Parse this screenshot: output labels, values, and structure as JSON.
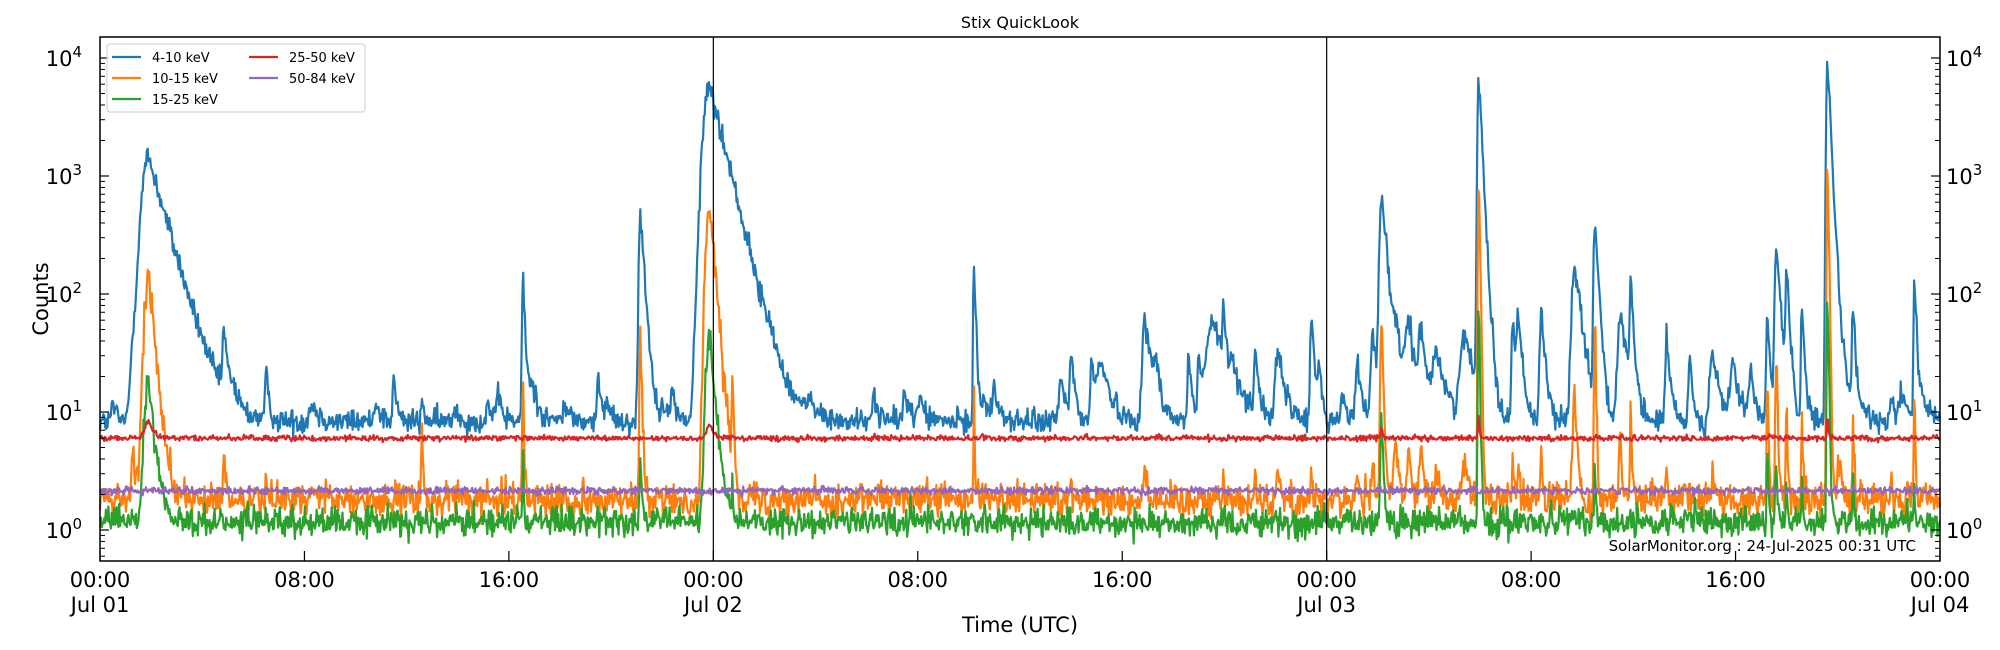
{
  "chart_data": {
    "type": "line",
    "title": "Stix QuickLook",
    "xlabel": "Time (UTC)",
    "ylabel": "Counts",
    "yscale": "log",
    "ylim": [
      0.55,
      15000
    ],
    "xlim_hours": [
      0,
      72
    ],
    "grid": false,
    "legend_position": "upper left",
    "legend_columns": 2,
    "x_ticks": [
      {
        "hour": 0,
        "line1": "00:00",
        "line2": "Jul 01"
      },
      {
        "hour": 8,
        "line1": "08:00",
        "line2": ""
      },
      {
        "hour": 16,
        "line1": "16:00",
        "line2": ""
      },
      {
        "hour": 24,
        "line1": "00:00",
        "line2": "Jul 02"
      },
      {
        "hour": 32,
        "line1": "08:00",
        "line2": ""
      },
      {
        "hour": 40,
        "line1": "16:00",
        "line2": ""
      },
      {
        "hour": 48,
        "line1": "00:00",
        "line2": "Jul 03"
      },
      {
        "hour": 56,
        "line1": "08:00",
        "line2": ""
      },
      {
        "hour": 64,
        "line1": "16:00",
        "line2": ""
      },
      {
        "hour": 72,
        "line1": "00:00",
        "line2": "Jul 04"
      }
    ],
    "y_ticks": [
      {
        "value": 1,
        "label_base": "10",
        "label_exp": "0"
      },
      {
        "value": 10,
        "label_base": "10",
        "label_exp": "1"
      },
      {
        "value": 100,
        "label_base": "10",
        "label_exp": "2"
      },
      {
        "value": 1000,
        "label_base": "10",
        "label_exp": "3"
      },
      {
        "value": 10000,
        "label_base": "10",
        "label_exp": "4"
      }
    ],
    "day_boundaries_hours": [
      24,
      48
    ],
    "annotation": "SolarMonitor.org : 24-Jul-2025 00:31 UTC",
    "series": [
      {
        "name": "4-10 keV",
        "color": "#1f77b4",
        "baseline": 8.3,
        "noise": 0.05
      },
      {
        "name": "10-15 keV",
        "color": "#ff7f0e",
        "baseline": 1.8,
        "noise": 0.07
      },
      {
        "name": "15-25 keV",
        "color": "#2ca02c",
        "baseline": 1.17,
        "noise": 0.06
      },
      {
        "name": "25-50 keV",
        "color": "#d62728",
        "baseline": 6.0,
        "noise": 0.012
      },
      {
        "name": "50-84 keV",
        "color": "#9467bd",
        "baseline": 2.15,
        "noise": 0.015
      }
    ],
    "flare_events": [
      {
        "hour": 0.5,
        "peak_4_10": 12,
        "peak_10_15": 0,
        "peak_15_25": 0,
        "width": 0.08
      },
      {
        "hour": 1.3,
        "peak_4_10": 30,
        "peak_10_15": 4.5,
        "peak_15_25": 0,
        "width": 0.15
      },
      {
        "hour": 1.9,
        "peak_4_10": 1450,
        "peak_10_15": 145,
        "peak_15_25": 18,
        "peak_25_50": 8.5,
        "width": 0.35
      },
      {
        "hour": 2.5,
        "peak_4_10": 13,
        "peak_10_15": 0,
        "peak_15_25": 0,
        "width": 0.1
      },
      {
        "hour": 3.1,
        "peak_4_10": 12,
        "peak_10_15": 0,
        "peak_15_25": 0,
        "width": 0.1
      },
      {
        "hour": 4.85,
        "peak_4_10": 44,
        "peak_10_15": 4.5,
        "peak_15_25": 0,
        "width": 0.08
      },
      {
        "hour": 5.2,
        "peak_4_10": 13,
        "peak_10_15": 0,
        "peak_15_25": 0,
        "width": 0.1
      },
      {
        "hour": 6.5,
        "peak_4_10": 21,
        "peak_10_15": 3.2,
        "peak_15_25": 0,
        "width": 0.06
      },
      {
        "hour": 8.3,
        "peak_4_10": 12,
        "peak_10_15": 0,
        "peak_15_25": 0,
        "width": 0.15
      },
      {
        "hour": 10.8,
        "peak_4_10": 13,
        "peak_10_15": 0,
        "peak_15_25": 0,
        "width": 0.1
      },
      {
        "hour": 11.5,
        "peak_4_10": 20,
        "peak_10_15": 0,
        "peak_15_25": 0,
        "width": 0.06
      },
      {
        "hour": 12.6,
        "peak_4_10": 12,
        "peak_10_15": 9,
        "peak_15_25": 0,
        "width": 0.06
      },
      {
        "hour": 13.9,
        "peak_4_10": 11,
        "peak_10_15": 0,
        "peak_15_25": 0,
        "width": 0.1
      },
      {
        "hour": 15.2,
        "peak_4_10": 12,
        "peak_10_15": 0,
        "peak_15_25": 0,
        "width": 0.1
      },
      {
        "hour": 15.6,
        "peak_4_10": 13,
        "peak_10_15": 0,
        "peak_15_25": 0,
        "width": 0.1
      },
      {
        "hour": 16.55,
        "peak_4_10": 135,
        "peak_10_15": 24,
        "peak_15_25": 4.5,
        "width": 0.05
      },
      {
        "hour": 16.9,
        "peak_4_10": 17,
        "peak_10_15": 0,
        "peak_15_25": 0,
        "width": 0.15
      },
      {
        "hour": 18.2,
        "peak_4_10": 12,
        "peak_10_15": 0,
        "peak_15_25": 0,
        "width": 0.1
      },
      {
        "hour": 19.5,
        "peak_4_10": 18,
        "peak_10_15": 0,
        "peak_15_25": 0,
        "width": 0.08
      },
      {
        "hour": 19.9,
        "peak_4_10": 12,
        "peak_10_15": 0,
        "peak_15_25": 0,
        "width": 0.1
      },
      {
        "hour": 21.15,
        "peak_4_10": 500,
        "peak_10_15": 55,
        "peak_15_25": 4.5,
        "width": 0.08
      },
      {
        "hour": 22.0,
        "peak_4_10": 13,
        "peak_10_15": 0,
        "peak_15_25": 0,
        "width": 0.1
      },
      {
        "hour": 22.4,
        "peak_4_10": 14,
        "peak_10_15": 0,
        "peak_15_25": 0,
        "width": 0.1
      },
      {
        "hour": 23.3,
        "peak_4_10": 22,
        "peak_10_15": 0,
        "peak_15_25": 0,
        "width": 0.1
      },
      {
        "hour": 23.55,
        "peak_4_10": 280,
        "peak_10_15": 6,
        "peak_15_25": 0,
        "width": 0.06
      },
      {
        "hour": 23.85,
        "peak_4_10": 5900,
        "peak_10_15": 600,
        "peak_15_25": 48,
        "peak_25_50": 8,
        "width": 0.3
      },
      {
        "hour": 24.5,
        "peak_4_10": 42,
        "peak_10_15": 3.5,
        "peak_15_25": 0,
        "width": 0.1
      },
      {
        "hour": 24.75,
        "peak_4_10": 190,
        "peak_10_15": 24,
        "peak_15_25": 3.0,
        "width": 0.06
      },
      {
        "hour": 25.4,
        "peak_4_10": 14,
        "peak_10_15": 0,
        "peak_15_25": 0,
        "width": 0.1
      },
      {
        "hour": 26.2,
        "peak_4_10": 15,
        "peak_10_15": 0,
        "peak_15_25": 0,
        "width": 0.1
      },
      {
        "hour": 27.8,
        "peak_4_10": 13,
        "peak_10_15": 0,
        "peak_15_25": 0,
        "width": 0.1
      },
      {
        "hour": 30.3,
        "peak_4_10": 14,
        "peak_10_15": 0,
        "peak_15_25": 0,
        "width": 0.1
      },
      {
        "hour": 31.5,
        "peak_4_10": 16,
        "peak_10_15": 0,
        "peak_15_25": 0,
        "width": 0.1
      },
      {
        "hour": 32.1,
        "peak_4_10": 14,
        "peak_10_15": 0,
        "peak_15_25": 0,
        "width": 0.1
      },
      {
        "hour": 34.2,
        "peak_4_10": 200,
        "peak_10_15": 16,
        "peak_15_25": 0,
        "width": 0.04
      },
      {
        "hour": 34.6,
        "peak_4_10": 13,
        "peak_10_15": 0,
        "peak_15_25": 0,
        "width": 0.1
      },
      {
        "hour": 35.0,
        "peak_4_10": 15,
        "peak_10_15": 0,
        "peak_15_25": 0,
        "width": 0.12
      },
      {
        "hour": 37.6,
        "peak_4_10": 20,
        "peak_10_15": 0,
        "peak_15_25": 0,
        "width": 0.1
      },
      {
        "hour": 38.0,
        "peak_4_10": 30,
        "peak_10_15": 3.2,
        "peak_15_25": 0,
        "width": 0.08
      },
      {
        "hour": 38.8,
        "peak_4_10": 30,
        "peak_10_15": 0,
        "peak_15_25": 0,
        "width": 0.06
      },
      {
        "hour": 39.15,
        "peak_4_10": 28,
        "peak_10_15": 0,
        "peak_15_25": 0,
        "width": 0.2
      },
      {
        "hour": 40.9,
        "peak_4_10": 57,
        "peak_10_15": 3.2,
        "peak_15_25": 0,
        "width": 0.15
      },
      {
        "hour": 41.3,
        "peak_4_10": 22,
        "peak_10_15": 0,
        "peak_15_25": 0,
        "width": 0.1
      },
      {
        "hour": 42.6,
        "peak_4_10": 33,
        "peak_10_15": 0,
        "peak_15_25": 0,
        "width": 0.06
      },
      {
        "hour": 43.0,
        "peak_4_10": 30,
        "peak_10_15": 0,
        "peak_15_25": 0,
        "width": 0.06
      },
      {
        "hour": 43.55,
        "peak_4_10": 57,
        "peak_10_15": 0,
        "peak_15_25": 0,
        "width": 0.35
      },
      {
        "hour": 43.95,
        "peak_4_10": 73,
        "peak_10_15": 4.5,
        "peak_15_25": 0,
        "width": 0.04
      },
      {
        "hour": 44.3,
        "peak_4_10": 16,
        "peak_10_15": 0,
        "peak_15_25": 0,
        "width": 0.1
      },
      {
        "hour": 45.2,
        "peak_4_10": 36,
        "peak_10_15": 3.5,
        "peak_15_25": 0,
        "width": 0.06
      },
      {
        "hour": 46.1,
        "peak_4_10": 30,
        "peak_10_15": 3.5,
        "peak_15_25": 0,
        "width": 0.15
      },
      {
        "hour": 47.4,
        "peak_4_10": 69,
        "peak_10_15": 3.5,
        "peak_15_25": 0,
        "width": 0.06
      },
      {
        "hour": 47.7,
        "peak_4_10": 28,
        "peak_10_15": 0,
        "peak_15_25": 0,
        "width": 0.06
      },
      {
        "hour": 48.6,
        "peak_4_10": 14,
        "peak_10_15": 0,
        "peak_15_25": 0,
        "width": 0.1
      },
      {
        "hour": 49.2,
        "peak_4_10": 26,
        "peak_10_15": 3.0,
        "peak_15_25": 0,
        "width": 0.1
      },
      {
        "hour": 49.8,
        "peak_4_10": 50,
        "peak_10_15": 4.5,
        "peak_15_25": 0,
        "width": 0.1
      },
      {
        "hour": 50.15,
        "peak_4_10": 760,
        "peak_10_15": 65,
        "peak_15_25": 10,
        "peak_25_50": 7.5,
        "width": 0.1
      },
      {
        "hour": 50.7,
        "peak_4_10": 38,
        "peak_10_15": 5,
        "peak_15_25": 0,
        "width": 0.2
      },
      {
        "hour": 51.2,
        "peak_4_10": 55,
        "peak_10_15": 5.5,
        "peak_15_25": 0,
        "width": 0.15
      },
      {
        "hour": 51.7,
        "peak_4_10": 40,
        "peak_10_15": 5,
        "peak_15_25": 0,
        "width": 0.15
      },
      {
        "hour": 52.3,
        "peak_4_10": 30,
        "peak_10_15": 3.5,
        "peak_15_25": 0,
        "width": 0.2
      },
      {
        "hour": 53.4,
        "peak_4_10": 42,
        "peak_10_15": 4.5,
        "peak_15_25": 0,
        "width": 0.25
      },
      {
        "hour": 53.95,
        "peak_4_10": 8200,
        "peak_10_15": 1350,
        "peak_15_25": 110,
        "peak_25_50": 10,
        "width": 0.06
      },
      {
        "hour": 54.5,
        "peak_4_10": 15,
        "peak_10_15": 0,
        "peak_15_25": 0,
        "width": 0.1
      },
      {
        "hour": 55.3,
        "peak_4_10": 60,
        "peak_10_15": 4.5,
        "peak_15_25": 0,
        "width": 0.08
      },
      {
        "hour": 55.5,
        "peak_4_10": 60,
        "peak_10_15": 4.0,
        "peak_15_25": 0,
        "width": 0.08
      },
      {
        "hour": 56.4,
        "peak_4_10": 77,
        "peak_10_15": 5,
        "peak_15_25": 0,
        "width": 0.08
      },
      {
        "hour": 57.7,
        "peak_4_10": 180,
        "peak_10_15": 16,
        "peak_15_25": 0,
        "width": 0.15
      },
      {
        "hour": 58.5,
        "peak_4_10": 410,
        "peak_10_15": 55,
        "peak_15_25": 3.5,
        "width": 0.07
      },
      {
        "hour": 59.5,
        "peak_4_10": 65,
        "peak_10_15": 6,
        "peak_15_25": 0,
        "width": 0.15
      },
      {
        "hour": 59.9,
        "peak_4_10": 110,
        "peak_10_15": 12,
        "peak_15_25": 0,
        "width": 0.06
      },
      {
        "hour": 61.3,
        "peak_4_10": 40,
        "peak_10_15": 3.5,
        "peak_15_25": 0,
        "width": 0.08
      },
      {
        "hour": 62.2,
        "peak_4_10": 32,
        "peak_10_15": 3.0,
        "peak_15_25": 0,
        "width": 0.06
      },
      {
        "hour": 63.1,
        "peak_4_10": 30,
        "peak_10_15": 3.0,
        "peak_15_25": 0,
        "width": 0.15
      },
      {
        "hour": 63.9,
        "peak_4_10": 25,
        "peak_10_15": 0,
        "peak_15_25": 0,
        "width": 0.15
      },
      {
        "hour": 64.6,
        "peak_4_10": 20,
        "peak_10_15": 0,
        "peak_15_25": 0,
        "width": 0.1
      },
      {
        "hour": 65.25,
        "peak_4_10": 60,
        "peak_10_15": 22,
        "peak_15_25": 5,
        "width": 0.06
      },
      {
        "hour": 65.6,
        "peak_4_10": 280,
        "peak_10_15": 32,
        "peak_15_25": 4.5,
        "width": 0.08
      },
      {
        "hour": 66.0,
        "peak_4_10": 160,
        "peak_10_15": 14,
        "peak_15_25": 3.0,
        "width": 0.06
      },
      {
        "hour": 66.6,
        "peak_4_10": 90,
        "peak_10_15": 10,
        "peak_15_25": 3.0,
        "width": 0.05
      },
      {
        "hour": 67.6,
        "peak_4_10": 9400,
        "peak_10_15": 1450,
        "peak_15_25": 110,
        "peak_25_50": 10,
        "width": 0.06
      },
      {
        "hour": 68.1,
        "peak_4_10": 24,
        "peak_10_15": 3.5,
        "peak_15_25": 0,
        "width": 0.25
      },
      {
        "hour": 68.6,
        "peak_4_10": 75,
        "peak_10_15": 12,
        "peak_15_25": 3.0,
        "width": 0.05
      },
      {
        "hour": 70.1,
        "peak_4_10": 14,
        "peak_10_15": 3.0,
        "peak_15_25": 0,
        "width": 0.08
      },
      {
        "hour": 70.5,
        "peak_4_10": 15,
        "peak_10_15": 0,
        "peak_15_25": 0,
        "width": 0.15
      },
      {
        "hour": 71.0,
        "peak_4_10": 165,
        "peak_10_15": 19,
        "peak_15_25": 3.0,
        "width": 0.04
      },
      {
        "hour": 71.3,
        "peak_4_10": 15,
        "peak_10_15": 0,
        "peak_15_25": 0,
        "width": 0.12
      }
    ]
  }
}
